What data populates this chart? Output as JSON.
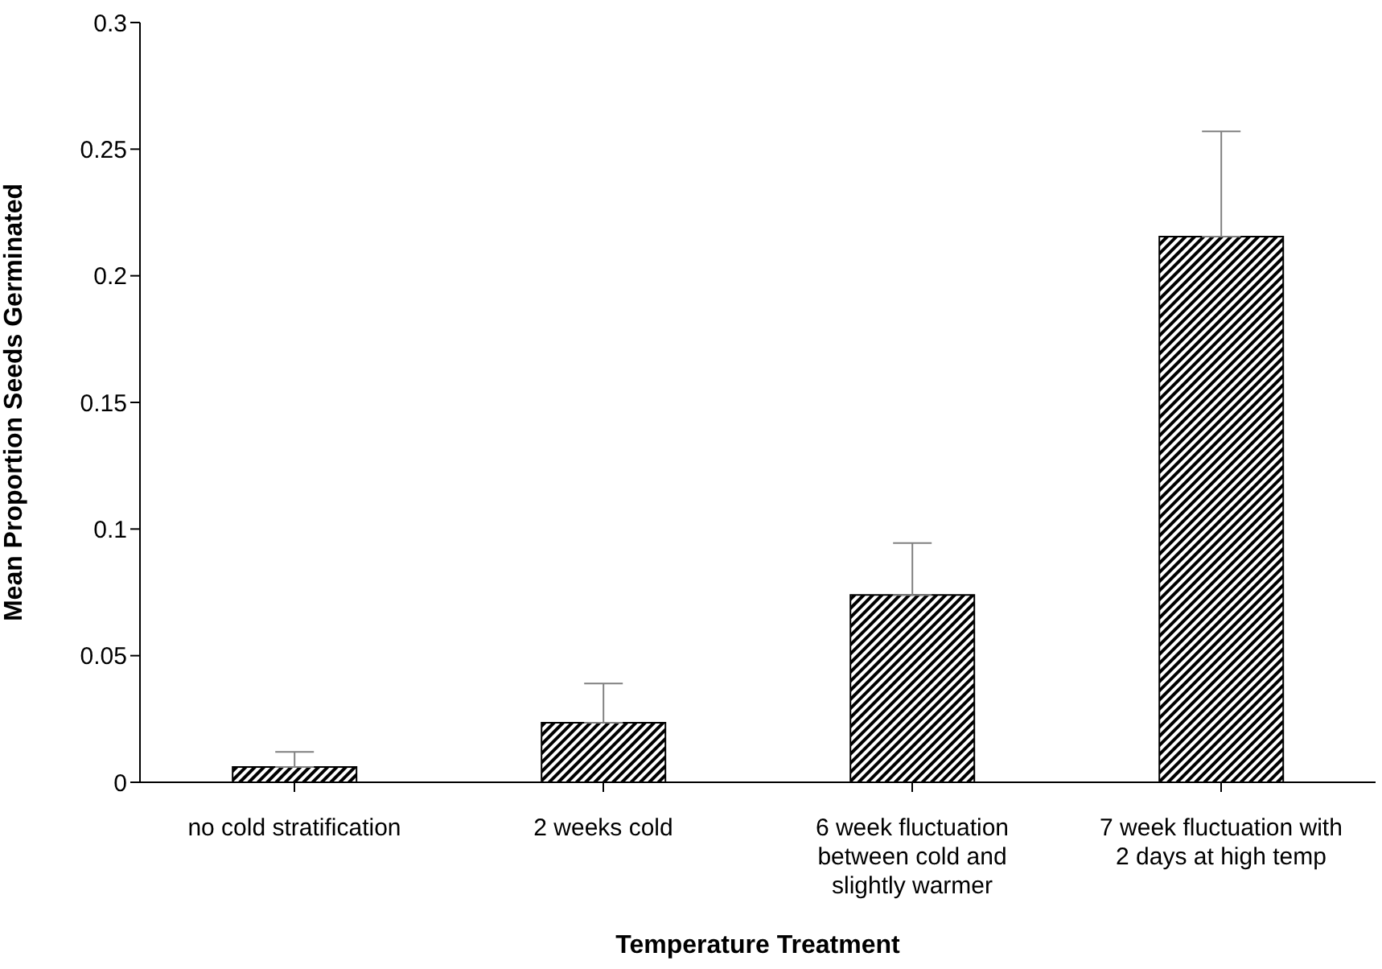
{
  "chart_data": {
    "type": "bar",
    "xlabel": "Temperature Treatment",
    "ylabel": "Mean Proportion Seeds Germinated",
    "categories": [
      "no cold stratification",
      "2 weeks cold",
      "6 week fluctuation between cold and slightly warmer",
      "7 week fluctuation with 2 days at high temp"
    ],
    "values": [
      0.006,
      0.0235,
      0.074,
      0.2155
    ],
    "errors": [
      [
        0.006,
        0.012
      ],
      [
        0.0235,
        0.039
      ],
      [
        0.074,
        0.0945
      ],
      [
        0.2155,
        0.257
      ]
    ],
    "color": "#000000",
    "ylim": [
      0,
      0.3
    ],
    "yticks": [
      0,
      0.05,
      0.1,
      0.15,
      0.2,
      0.25,
      0.3
    ]
  }
}
